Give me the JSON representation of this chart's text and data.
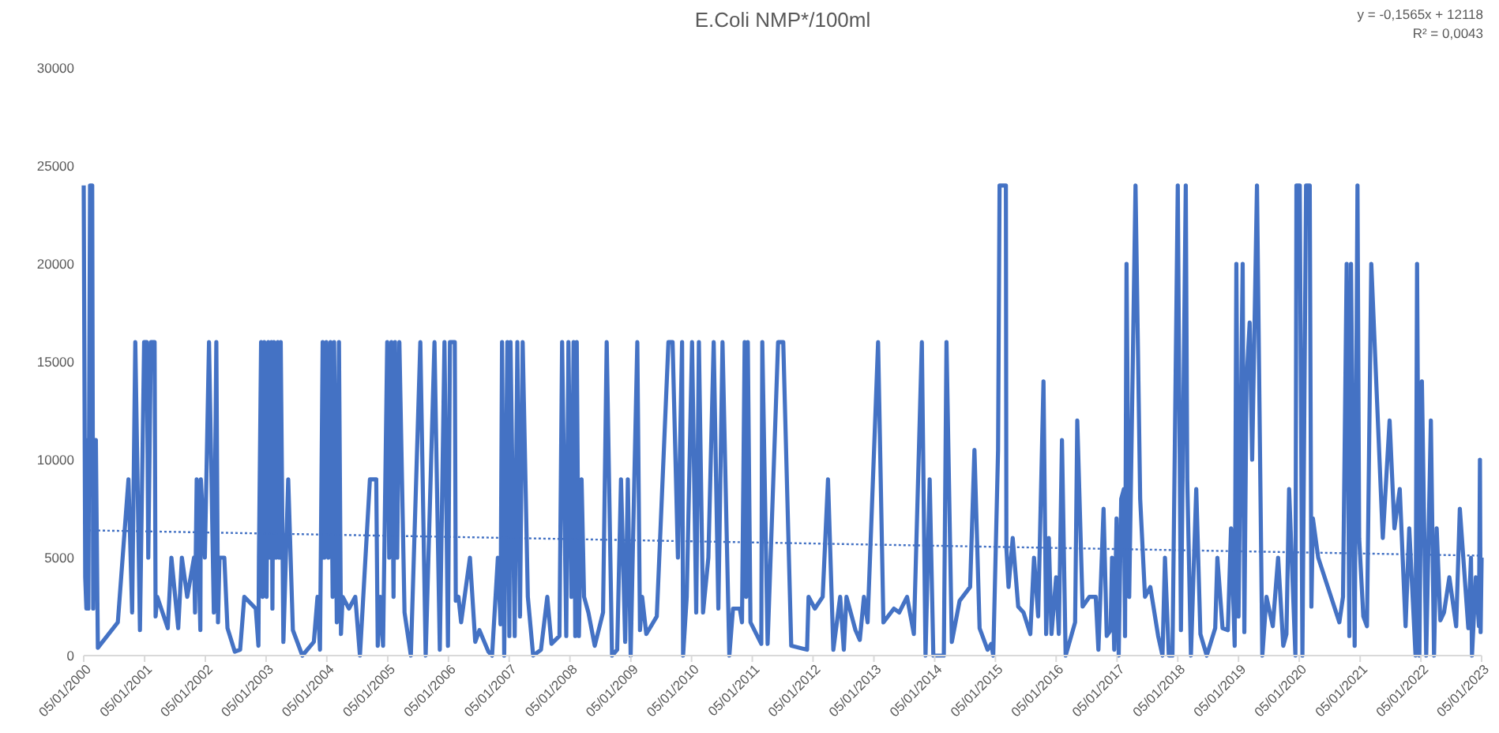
{
  "chart_data": {
    "type": "line",
    "title": "E.Coli NMP*/100ml",
    "annotations": [
      "y = -0,1565x + 12118",
      "R² = 0,0043"
    ],
    "xlim": [
      "2000-01-05",
      "2023-01-05"
    ],
    "xticks": [
      {
        "value": "2000-01-05",
        "label": "05/01/2000"
      },
      {
        "value": "2001-01-05",
        "label": "05/01/2001"
      },
      {
        "value": "2002-01-05",
        "label": "05/01/2002"
      },
      {
        "value": "2003-01-05",
        "label": "05/01/2003"
      },
      {
        "value": "2004-01-05",
        "label": "05/01/2004"
      },
      {
        "value": "2005-01-05",
        "label": "05/01/2005"
      },
      {
        "value": "2006-01-05",
        "label": "05/01/2006"
      },
      {
        "value": "2007-01-05",
        "label": "05/01/2007"
      },
      {
        "value": "2008-01-05",
        "label": "05/01/2008"
      },
      {
        "value": "2009-01-05",
        "label": "05/01/2009"
      },
      {
        "value": "2010-01-05",
        "label": "05/01/2010"
      },
      {
        "value": "2011-01-05",
        "label": "05/01/2011"
      },
      {
        "value": "2012-01-05",
        "label": "05/01/2012"
      },
      {
        "value": "2013-01-05",
        "label": "05/01/2013"
      },
      {
        "value": "2014-01-05",
        "label": "05/01/2014"
      },
      {
        "value": "2015-01-05",
        "label": "05/01/2015"
      },
      {
        "value": "2016-01-05",
        "label": "05/01/2016"
      },
      {
        "value": "2017-01-05",
        "label": "05/01/2017"
      },
      {
        "value": "2018-01-05",
        "label": "05/01/2018"
      },
      {
        "value": "2019-01-05",
        "label": "05/01/2019"
      },
      {
        "value": "2020-01-05",
        "label": "05/01/2020"
      },
      {
        "value": "2021-01-05",
        "label": "05/01/2021"
      },
      {
        "value": "2022-01-05",
        "label": "05/01/2022"
      },
      {
        "value": "2023-01-05",
        "label": "05/01/2023"
      }
    ],
    "ylim": [
      0,
      30000
    ],
    "yticks": [
      0,
      5000,
      10000,
      15000,
      20000,
      25000,
      30000
    ],
    "grid": false,
    "series": [
      {
        "color": "#4472c4",
        "line_style": "solid",
        "x": [
          "2000-01-05",
          "2000-01-14",
          "2000-01-21",
          "2000-01-27",
          "2000-02-02",
          "2000-02-12",
          "2000-02-25",
          "2000-03-02",
          "2000-03-11",
          "2000-03-18",
          "2000-03-30",
          "2000-07-28",
          "2000-09-30",
          "2000-10-22",
          "2000-11-10",
          "2000-12-08",
          "2001-01-02",
          "2001-01-18",
          "2001-01-27",
          "2001-02-12",
          "2001-03-06",
          "2001-03-12",
          "2001-03-22",
          "2001-05-24",
          "2001-06-15",
          "2001-07-26",
          "2001-08-17",
          "2001-09-18",
          "2001-10-29",
          "2001-11-04",
          "2001-11-14",
          "2001-12-06",
          "2001-12-09",
          "2002-01-02",
          "2002-01-27",
          "2002-02-25",
          "2002-03-12",
          "2002-03-22",
          "2002-03-31",
          "2002-04-29",
          "2002-05-18",
          "2002-07-01",
          "2002-08-02",
          "2002-08-27",
          "2002-11-04",
          "2002-11-20",
          "2002-11-23",
          "2002-12-06",
          "2002-12-15",
          "2002-12-25",
          "2003-01-08",
          "2003-01-18",
          "2003-01-27",
          "2003-02-06",
          "2003-02-12",
          "2003-02-21",
          "2003-03-06",
          "2003-03-16",
          "2003-03-25",
          "2003-04-03",
          "2003-04-19",
          "2003-05-18",
          "2003-06-15",
          "2003-08-11",
          "2003-10-19",
          "2003-11-10",
          "2003-11-25",
          "2003-12-11",
          "2003-12-21",
          "2004-01-02",
          "2004-01-14",
          "2004-01-27",
          "2004-02-09",
          "2004-02-18",
          "2004-03-05",
          "2004-03-18",
          "2004-03-30",
          "2004-04-09",
          "2004-05-17",
          "2004-06-24",
          "2004-07-22",
          "2004-09-20",
          "2004-10-28",
          "2004-11-06",
          "2004-11-22",
          "2004-12-08",
          "2005-01-02",
          "2005-01-14",
          "2005-01-27",
          "2005-02-09",
          "2005-02-18",
          "2005-03-03",
          "2005-03-16",
          "2005-04-16",
          "2005-05-24",
          "2005-07-20",
          "2005-08-21",
          "2005-10-13",
          "2005-11-14",
          "2005-12-12",
          "2006-01-02",
          "2006-01-14",
          "2006-02-12",
          "2006-02-18",
          "2006-03-06",
          "2006-03-22",
          "2006-05-14",
          "2006-06-15",
          "2006-07-10",
          "2006-09-02",
          "2006-09-24",
          "2006-10-29",
          "2006-11-14",
          "2006-11-23",
          "2006-12-06",
          "2006-12-25",
          "2007-01-06",
          "2007-01-13",
          "2007-02-07",
          "2007-02-23",
          "2007-03-11",
          "2007-03-27",
          "2007-04-27",
          "2007-05-29",
          "2007-07-15",
          "2007-08-22",
          "2007-09-16",
          "2007-11-03",
          "2007-11-19",
          "2007-12-14",
          "2007-12-27",
          "2008-01-14",
          "2008-01-27",
          "2008-02-06",
          "2008-02-15",
          "2008-02-28",
          "2008-03-15",
          "2008-03-30",
          "2008-04-25",
          "2008-06-02",
          "2008-07-22",
          "2008-08-13",
          "2008-09-14",
          "2008-10-15",
          "2008-11-07",
          "2008-12-02",
          "2008-12-18",
          "2009-01-04",
          "2009-01-26",
          "2009-02-13",
          "2009-03-01",
          "2009-03-14",
          "2009-04-08",
          "2009-06-10",
          "2009-08-19",
          "2009-09-13",
          "2009-10-15",
          "2009-11-09",
          "2009-11-15",
          "2009-12-07",
          "2010-01-08",
          "2010-02-02",
          "2010-02-18",
          "2010-03-15",
          "2010-04-16",
          "2010-05-18",
          "2010-06-15",
          "2010-07-10",
          "2010-08-20",
          "2010-09-11",
          "2010-10-22",
          "2010-11-04",
          "2010-11-20",
          "2010-11-29",
          "2010-12-09",
          "2010-12-25",
          "2011-02-28",
          "2011-03-06",
          "2011-04-07",
          "2011-06-09",
          "2011-07-10",
          "2011-08-27",
          "2011-11-30",
          "2011-12-09",
          "2012-01-16",
          "2012-03-03",
          "2012-04-04",
          "2012-05-06",
          "2012-06-16",
          "2012-07-08",
          "2012-07-24",
          "2012-09-16",
          "2012-10-12",
          "2012-11-06",
          "2012-11-28",
          "2013-01-30",
          "2013-03-03",
          "2013-05-05",
          "2013-06-06",
          "2013-07-23",
          "2013-09-02",
          "2013-10-20",
          "2013-11-11",
          "2013-12-06",
          "2013-12-28",
          "2014-03-01",
          "2014-03-17",
          "2014-04-18",
          "2014-06-04",
          "2014-08-06",
          "2014-09-01",
          "2014-10-02",
          "2014-11-19",
          "2014-12-11",
          "2014-12-23",
          "2015-01-21",
          "2015-01-30",
          "2015-03-09",
          "2015-03-12",
          "2015-03-25",
          "2015-04-19",
          "2015-05-22",
          "2015-06-23",
          "2015-08-03",
          "2015-08-25",
          "2015-09-19",
          "2015-10-21",
          "2015-11-06",
          "2015-11-22",
          "2015-12-08",
          "2016-01-05",
          "2016-01-21",
          "2016-02-09",
          "2016-03-02",
          "2016-04-28",
          "2016-05-11",
          "2016-06-12",
          "2016-07-23",
          "2016-08-30",
          "2016-09-15",
          "2016-10-16",
          "2016-11-04",
          "2016-11-27",
          "2016-12-06",
          "2016-12-19",
          "2017-01-02",
          "2017-01-15",
          "2017-01-30",
          "2017-02-15",
          "2017-02-22",
          "2017-03-03",
          "2017-03-19",
          "2017-04-26",
          "2017-05-24",
          "2017-06-22",
          "2017-07-24",
          "2017-09-09",
          "2017-10-05",
          "2017-10-20",
          "2017-11-12",
          "2017-12-04",
          "2018-01-05",
          "2018-01-24",
          "2018-02-22",
          "2018-03-03",
          "2018-03-25",
          "2018-04-26",
          "2018-05-21",
          "2018-06-28",
          "2018-08-18",
          "2018-08-31",
          "2018-10-01",
          "2018-11-02",
          "2018-11-21",
          "2018-12-13",
          "2018-12-23",
          "2019-01-05",
          "2019-01-30",
          "2019-02-09",
          "2019-02-22",
          "2019-03-13",
          "2019-03-28",
          "2019-04-26",
          "2019-05-28",
          "2019-06-22",
          "2019-07-30",
          "2019-08-31",
          "2019-10-01",
          "2019-10-20",
          "2019-11-05",
          "2019-12-13",
          "2019-12-19",
          "2020-01-08",
          "2020-01-24",
          "2020-02-15",
          "2020-03-08",
          "2020-03-18",
          "2020-03-27",
          "2020-04-28",
          "2020-09-02",
          "2020-09-24",
          "2020-10-16",
          "2020-11-01",
          "2020-11-11",
          "2020-12-03",
          "2020-12-20",
          "2020-12-30",
          "2021-01-24",
          "2021-02-15",
          "2021-03-13",
          "2021-05-21",
          "2021-07-01",
          "2021-07-30",
          "2021-08-31",
          "2021-10-05",
          "2021-10-27",
          "2021-12-04",
          "2021-12-13",
          "2021-12-27",
          "2022-01-11",
          "2022-02-06",
          "2022-03-06",
          "2022-03-25",
          "2022-04-10",
          "2022-05-02",
          "2022-05-24",
          "2022-06-25",
          "2022-08-05",
          "2022-08-27",
          "2022-10-17",
          "2022-11-02",
          "2022-11-08",
          "2022-12-01",
          "2022-12-20",
          "2022-12-26",
          "2022-12-30",
          "2023-01-05"
        ],
        "values": [
          24000,
          4000,
          2400,
          11000,
          2400,
          24000,
          24000,
          2400,
          11000,
          11000,
          400,
          1700,
          9000,
          2200,
          16000,
          1300,
          16000,
          16000,
          5000,
          16000,
          16000,
          2000,
          3000,
          1400,
          5000,
          1400,
          5000,
          3000,
          5000,
          2200,
          9000,
          1300,
          9000,
          5000,
          16000,
          2200,
          16000,
          1700,
          5000,
          5000,
          1400,
          200,
          300,
          3000,
          2400,
          500,
          5000,
          16000,
          3000,
          16000,
          3000,
          16000,
          5000,
          16000,
          2400,
          16000,
          5000,
          16000,
          5000,
          16000,
          700,
          9000,
          1300,
          0,
          700,
          3000,
          300,
          16000,
          5000,
          16000,
          5000,
          16000,
          3000,
          16000,
          1700,
          16000,
          1100,
          3000,
          2400,
          3000,
          0,
          9000,
          9000,
          500,
          3000,
          500,
          16000,
          5000,
          16000,
          3000,
          16000,
          5000,
          16000,
          2200,
          0,
          16000,
          0,
          16000,
          300,
          16000,
          500,
          16000,
          16000,
          2800,
          3000,
          1700,
          5000,
          700,
          1300,
          200,
          0,
          5000,
          1600,
          16000,
          0,
          16000,
          1000,
          16000,
          1000,
          16000,
          2000,
          16000,
          3000,
          0,
          300,
          3000,
          600,
          1000,
          16000,
          1000,
          16000,
          3000,
          16000,
          1000,
          16000,
          1000,
          9000,
          3000,
          2200,
          500,
          2200,
          16000,
          0,
          300,
          9000,
          700,
          9000,
          0,
          9000,
          16000,
          1300,
          3000,
          1100,
          2000,
          16000,
          16000,
          5000,
          16000,
          0,
          3000,
          16000,
          2200,
          16000,
          2200,
          5000,
          16000,
          2400,
          16000,
          0,
          2400,
          2400,
          1700,
          16000,
          3000,
          16000,
          1700,
          600,
          16000,
          600,
          16000,
          16000,
          500,
          300,
          3000,
          2400,
          3000,
          9000,
          300,
          3000,
          300,
          3000,
          1300,
          800,
          3000,
          1700,
          16000,
          1700,
          2400,
          2200,
          3000,
          1100,
          16000,
          0,
          9000,
          0,
          0,
          16000,
          700,
          2800,
          3500,
          10500,
          1400,
          300,
          600,
          0,
          10500,
          24000,
          24000,
          5500,
          3500,
          6000,
          2500,
          2200,
          1100,
          5000,
          2000,
          14000,
          1100,
          6000,
          1100,
          4000,
          1100,
          11000,
          0,
          1700,
          12000,
          2500,
          3000,
          3000,
          300,
          7500,
          1000,
          1300,
          5000,
          300,
          7000,
          0,
          8000,
          8500,
          1000,
          20000,
          3000,
          24000,
          8000,
          3000,
          3500,
          1000,
          0,
          5000,
          0,
          0,
          24000,
          1300,
          24000,
          9000,
          0,
          8500,
          1100,
          0,
          1400,
          5000,
          1400,
          1300,
          6500,
          500,
          20000,
          2000,
          20000,
          1200,
          14000,
          17000,
          10000,
          24000,
          0,
          3000,
          1500,
          5000,
          500,
          1100,
          8500,
          0,
          24000,
          24000,
          0,
          24000,
          24000,
          2500,
          7000,
          5000,
          1700,
          3000,
          20000,
          1000,
          20000,
          500,
          24000,
          6000,
          2000,
          1500,
          20000,
          6000,
          12000,
          6500,
          8500,
          1500,
          6500,
          0,
          20000,
          0,
          14000,
          0,
          12000,
          0,
          6500,
          1800,
          2200,
          4000,
          1500,
          7500,
          1400,
          5000,
          0,
          4000,
          1500,
          10000,
          1200,
          5000
        ]
      },
      {
        "color": "#4472c4",
        "line_style": "dotted",
        "x": [
          "2000-01-05",
          "2023-01-05"
        ],
        "values": [
          6400,
          5100
        ]
      }
    ]
  }
}
